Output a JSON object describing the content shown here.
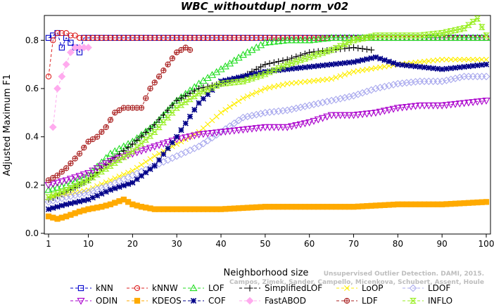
{
  "chart_data": {
    "type": "line",
    "title": "WBC_withoutdupl_norm_v02",
    "xlabel": "Neighborhood size",
    "ylabel": "Adjusted Maximum F1",
    "xlim": [
      0,
      100
    ],
    "ylim": [
      0,
      0.9
    ],
    "xticks": [
      1,
      10,
      20,
      30,
      40,
      50,
      60,
      70,
      80,
      90,
      100
    ],
    "yticks": [
      0.0,
      0.2,
      0.4,
      0.6,
      0.8
    ],
    "ytick_labels": [
      "0.0",
      "0.2",
      "0.4",
      "0.6",
      "0.8"
    ],
    "grid": false,
    "legend_position": "bottom",
    "watermark": [
      "Unsupervised Outlier Detection. DAMI, 2015.",
      "Campos, Zimek, Sander, Campello, Micenkova, Schubert, Assent, Houle"
    ],
    "series": [
      {
        "name": "kNN",
        "color": "#0000cc",
        "marker": "square",
        "dash": "4,3",
        "points": [
          [
            1,
            0.81
          ],
          [
            2,
            0.82
          ],
          [
            3,
            0.83
          ],
          [
            4,
            0.77
          ],
          [
            5,
            0.81
          ],
          [
            6,
            0.79
          ],
          [
            7,
            0.77
          ],
          [
            8,
            0.75
          ],
          [
            9,
            0.81
          ],
          [
            10,
            0.81
          ],
          [
            100,
            0.81
          ]
        ]
      },
      {
        "name": "kNNW",
        "color": "#dd2222",
        "marker": "circle",
        "dash": "4,3",
        "points": [
          [
            1,
            0.65
          ],
          [
            2,
            0.8
          ],
          [
            3,
            0.83
          ],
          [
            4,
            0.83
          ],
          [
            5,
            0.83
          ],
          [
            6,
            0.82
          ],
          [
            7,
            0.82
          ],
          [
            8,
            0.81
          ],
          [
            10,
            0.81
          ],
          [
            100,
            0.81
          ]
        ]
      },
      {
        "name": "LOF",
        "color": "#22dd22",
        "marker": "triangle",
        "dash": "4,3",
        "points": [
          [
            1,
            0.18
          ],
          [
            5,
            0.2
          ],
          [
            10,
            0.24
          ],
          [
            15,
            0.33
          ],
          [
            20,
            0.38
          ],
          [
            25,
            0.45
          ],
          [
            30,
            0.55
          ],
          [
            35,
            0.62
          ],
          [
            40,
            0.68
          ],
          [
            45,
            0.74
          ],
          [
            50,
            0.79
          ],
          [
            55,
            0.8
          ],
          [
            60,
            0.8
          ],
          [
            65,
            0.81
          ],
          [
            70,
            0.81
          ],
          [
            80,
            0.81
          ],
          [
            100,
            0.81
          ]
        ]
      },
      {
        "name": "SimplifiedLOF",
        "color": "#000000",
        "marker": "plus",
        "dash": "4,3",
        "points": [
          [
            1,
            0.14
          ],
          [
            5,
            0.17
          ],
          [
            10,
            0.22
          ],
          [
            15,
            0.3
          ],
          [
            20,
            0.37
          ],
          [
            25,
            0.45
          ],
          [
            30,
            0.55
          ],
          [
            35,
            0.6
          ],
          [
            40,
            0.62
          ],
          [
            45,
            0.65
          ],
          [
            50,
            0.7
          ],
          [
            55,
            0.72
          ],
          [
            60,
            0.75
          ],
          [
            65,
            0.76
          ],
          [
            70,
            0.77
          ],
          [
            74,
            0.76
          ]
        ]
      },
      {
        "name": "LoOP",
        "color": "#ffee00",
        "marker": "x",
        "dash": "4,3",
        "points": [
          [
            1,
            0.15
          ],
          [
            5,
            0.16
          ],
          [
            10,
            0.18
          ],
          [
            15,
            0.22
          ],
          [
            20,
            0.26
          ],
          [
            25,
            0.32
          ],
          [
            30,
            0.37
          ],
          [
            35,
            0.42
          ],
          [
            40,
            0.5
          ],
          [
            45,
            0.56
          ],
          [
            50,
            0.6
          ],
          [
            55,
            0.62
          ],
          [
            60,
            0.63
          ],
          [
            65,
            0.64
          ],
          [
            70,
            0.67
          ],
          [
            80,
            0.7
          ],
          [
            90,
            0.72
          ],
          [
            100,
            0.72
          ]
        ]
      },
      {
        "name": "LDOF",
        "color": "#aaaaee",
        "marker": "diamond",
        "dash": "4,3",
        "points": [
          [
            1,
            0.13
          ],
          [
            5,
            0.15
          ],
          [
            10,
            0.17
          ],
          [
            15,
            0.2
          ],
          [
            20,
            0.24
          ],
          [
            25,
            0.28
          ],
          [
            30,
            0.32
          ],
          [
            35,
            0.36
          ],
          [
            40,
            0.42
          ],
          [
            45,
            0.48
          ],
          [
            50,
            0.5
          ],
          [
            55,
            0.51
          ],
          [
            60,
            0.53
          ],
          [
            65,
            0.55
          ],
          [
            70,
            0.57
          ],
          [
            75,
            0.6
          ],
          [
            80,
            0.62
          ],
          [
            85,
            0.63
          ],
          [
            90,
            0.63
          ],
          [
            95,
            0.65
          ],
          [
            100,
            0.65
          ]
        ]
      },
      {
        "name": "ODIN",
        "color": "#aa00cc",
        "marker": "triangle-down",
        "dash": "4,3",
        "points": [
          [
            1,
            0.2
          ],
          [
            5,
            0.22
          ],
          [
            10,
            0.25
          ],
          [
            15,
            0.3
          ],
          [
            20,
            0.33
          ],
          [
            25,
            0.36
          ],
          [
            30,
            0.39
          ],
          [
            35,
            0.41
          ],
          [
            40,
            0.42
          ],
          [
            45,
            0.43
          ],
          [
            50,
            0.44
          ],
          [
            55,
            0.44
          ],
          [
            60,
            0.46
          ],
          [
            65,
            0.49
          ],
          [
            70,
            0.49
          ],
          [
            75,
            0.5
          ],
          [
            80,
            0.52
          ],
          [
            85,
            0.53
          ],
          [
            90,
            0.53
          ],
          [
            95,
            0.54
          ],
          [
            100,
            0.55
          ]
        ]
      },
      {
        "name": "KDEOS",
        "color": "#ffaa00",
        "marker": "square-filled",
        "dash": "4,3",
        "points": [
          [
            1,
            0.07
          ],
          [
            3,
            0.06
          ],
          [
            5,
            0.07
          ],
          [
            8,
            0.09
          ],
          [
            10,
            0.1
          ],
          [
            13,
            0.11
          ],
          [
            15,
            0.12
          ],
          [
            18,
            0.14
          ],
          [
            20,
            0.12
          ],
          [
            22,
            0.11
          ],
          [
            25,
            0.1
          ],
          [
            30,
            0.1
          ],
          [
            40,
            0.1
          ],
          [
            50,
            0.11
          ],
          [
            60,
            0.11
          ],
          [
            70,
            0.11
          ],
          [
            80,
            0.12
          ],
          [
            90,
            0.12
          ],
          [
            100,
            0.13
          ]
        ]
      },
      {
        "name": "COF",
        "color": "#000088",
        "marker": "asterisk",
        "dash": "4,3",
        "points": [
          [
            1,
            0.1
          ],
          [
            5,
            0.12
          ],
          [
            10,
            0.14
          ],
          [
            15,
            0.18
          ],
          [
            20,
            0.21
          ],
          [
            25,
            0.28
          ],
          [
            30,
            0.4
          ],
          [
            35,
            0.54
          ],
          [
            40,
            0.63
          ],
          [
            45,
            0.65
          ],
          [
            50,
            0.67
          ],
          [
            55,
            0.68
          ],
          [
            60,
            0.69
          ],
          [
            65,
            0.7
          ],
          [
            70,
            0.71
          ],
          [
            75,
            0.73
          ],
          [
            80,
            0.7
          ],
          [
            85,
            0.69
          ],
          [
            90,
            0.68
          ],
          [
            95,
            0.69
          ],
          [
            100,
            0.7
          ]
        ]
      },
      {
        "name": "FastABOD",
        "color": "#ffaaee",
        "marker": "diamond-filled",
        "dash": "4,3",
        "points": [
          [
            2,
            0.44
          ],
          [
            3,
            0.6
          ],
          [
            4,
            0.65
          ],
          [
            5,
            0.7
          ],
          [
            6,
            0.75
          ],
          [
            7,
            0.77
          ],
          [
            8,
            0.77
          ],
          [
            9,
            0.77
          ],
          [
            10,
            0.77
          ]
        ]
      },
      {
        "name": "LDF",
        "color": "#aa2222",
        "marker": "circle-plus",
        "dash": "4,3",
        "points": [
          [
            1,
            0.22
          ],
          [
            3,
            0.24
          ],
          [
            5,
            0.27
          ],
          [
            8,
            0.33
          ],
          [
            10,
            0.38
          ],
          [
            12,
            0.4
          ],
          [
            14,
            0.44
          ],
          [
            16,
            0.5
          ],
          [
            18,
            0.52
          ],
          [
            20,
            0.52
          ],
          [
            22,
            0.52
          ],
          [
            24,
            0.6
          ],
          [
            26,
            0.65
          ],
          [
            28,
            0.7
          ],
          [
            30,
            0.75
          ],
          [
            32,
            0.77
          ],
          [
            33,
            0.76
          ]
        ]
      },
      {
        "name": "INFLO",
        "color": "#99ee22",
        "marker": "hourglass",
        "dash": "4,3",
        "points": [
          [
            1,
            0.15
          ],
          [
            5,
            0.18
          ],
          [
            10,
            0.22
          ],
          [
            15,
            0.28
          ],
          [
            20,
            0.34
          ],
          [
            25,
            0.42
          ],
          [
            30,
            0.52
          ],
          [
            35,
            0.58
          ],
          [
            40,
            0.62
          ],
          [
            45,
            0.63
          ],
          [
            50,
            0.66
          ],
          [
            55,
            0.7
          ],
          [
            60,
            0.73
          ],
          [
            65,
            0.76
          ],
          [
            70,
            0.8
          ],
          [
            75,
            0.82
          ],
          [
            80,
            0.82
          ],
          [
            85,
            0.82
          ],
          [
            90,
            0.83
          ],
          [
            95,
            0.85
          ],
          [
            98,
            0.89
          ],
          [
            100,
            0.82
          ]
        ]
      }
    ]
  }
}
